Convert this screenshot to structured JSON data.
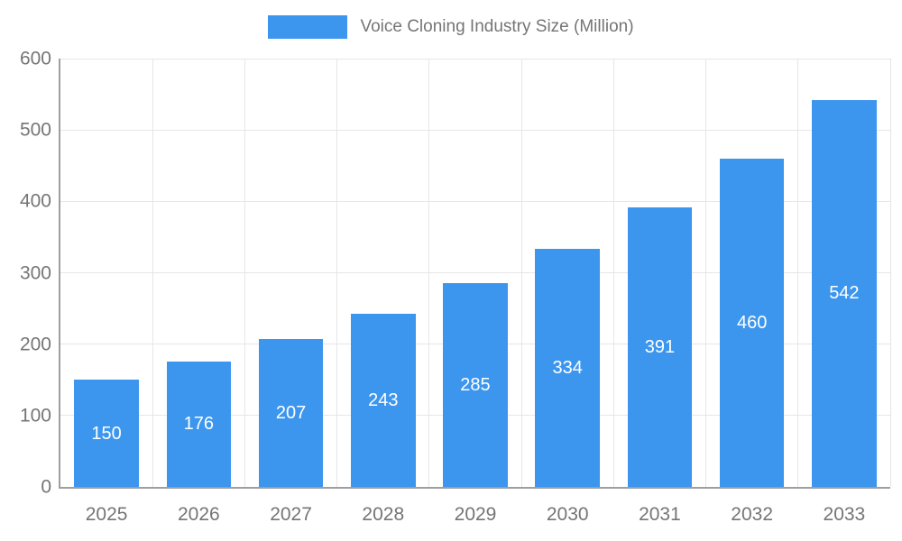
{
  "chart_data": {
    "type": "bar",
    "title": "Voice Cloning Industry Size (Million)",
    "categories": [
      "2025",
      "2026",
      "2027",
      "2028",
      "2029",
      "2030",
      "2031",
      "2032",
      "2033"
    ],
    "values": [
      150,
      176,
      207,
      243,
      285,
      334,
      391,
      460,
      542
    ],
    "xlabel": "",
    "ylabel": "",
    "ylim": [
      0,
      600
    ],
    "yticks": [
      0,
      100,
      200,
      300,
      400,
      500,
      600
    ],
    "grid": true,
    "legend_position": "top",
    "value_labels": "inside-center",
    "colors": {
      "bar": "#3d96ee",
      "value_label": "#ffffff",
      "axis_text": "#757575",
      "axis_line": "#9e9e9e",
      "grid": "#e6e6e6",
      "background": "#ffffff"
    }
  }
}
